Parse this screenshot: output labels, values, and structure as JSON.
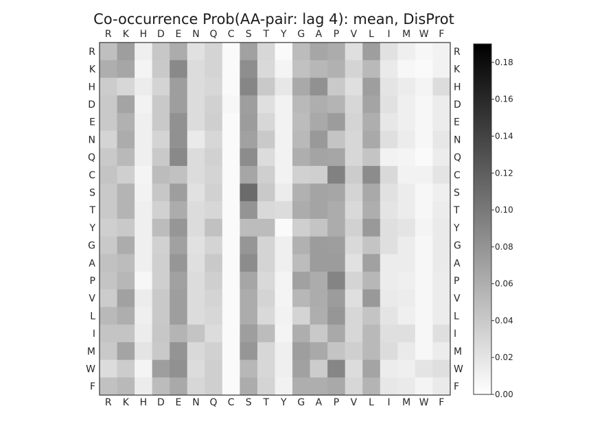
{
  "chart_data": {
    "type": "heatmap",
    "title": "Co-occurrence Prob(AA-pair: lag 4): mean, DisProt",
    "row_labels": [
      "R",
      "K",
      "H",
      "D",
      "E",
      "N",
      "Q",
      "C",
      "S",
      "T",
      "Y",
      "G",
      "A",
      "P",
      "V",
      "L",
      "I",
      "M",
      "W",
      "F"
    ],
    "col_labels": [
      "R",
      "K",
      "H",
      "D",
      "E",
      "N",
      "Q",
      "C",
      "S",
      "T",
      "Y",
      "G",
      "A",
      "P",
      "V",
      "L",
      "I",
      "M",
      "W",
      "F"
    ],
    "values": [
      [
        0.048,
        0.072,
        0.012,
        0.042,
        0.062,
        0.022,
        0.032,
        0.004,
        0.07,
        0.03,
        0.004,
        0.05,
        0.066,
        0.062,
        0.024,
        0.072,
        0.022,
        0.012,
        0.006,
        0.01
      ],
      [
        0.06,
        0.066,
        0.008,
        0.04,
        0.088,
        0.026,
        0.032,
        0.004,
        0.084,
        0.028,
        0.008,
        0.046,
        0.054,
        0.058,
        0.032,
        0.052,
        0.016,
        0.006,
        0.004,
        0.01
      ],
      [
        0.038,
        0.03,
        0.014,
        0.032,
        0.072,
        0.026,
        0.03,
        0.004,
        0.09,
        0.04,
        0.018,
        0.064,
        0.082,
        0.04,
        0.024,
        0.072,
        0.02,
        0.014,
        0.008,
        0.026
      ],
      [
        0.04,
        0.068,
        0.01,
        0.04,
        0.072,
        0.026,
        0.034,
        0.006,
        0.072,
        0.024,
        0.01,
        0.052,
        0.06,
        0.056,
        0.03,
        0.068,
        0.022,
        0.012,
        0.006,
        0.014
      ],
      [
        0.04,
        0.058,
        0.012,
        0.04,
        0.082,
        0.026,
        0.036,
        0.004,
        0.074,
        0.03,
        0.01,
        0.05,
        0.064,
        0.074,
        0.032,
        0.06,
        0.018,
        0.012,
        0.006,
        0.014
      ],
      [
        0.032,
        0.062,
        0.012,
        0.032,
        0.082,
        0.016,
        0.03,
        0.004,
        0.07,
        0.04,
        0.01,
        0.052,
        0.076,
        0.044,
        0.03,
        0.064,
        0.024,
        0.014,
        0.006,
        0.018
      ],
      [
        0.04,
        0.052,
        0.012,
        0.04,
        0.088,
        0.026,
        0.034,
        0.004,
        0.086,
        0.026,
        0.01,
        0.06,
        0.068,
        0.066,
        0.03,
        0.044,
        0.01,
        0.008,
        0.004,
        0.014
      ],
      [
        0.044,
        0.036,
        0.008,
        0.05,
        0.046,
        0.026,
        0.032,
        0.004,
        0.066,
        0.036,
        0.01,
        0.034,
        0.036,
        0.094,
        0.038,
        0.086,
        0.028,
        0.01,
        0.01,
        0.02
      ],
      [
        0.04,
        0.056,
        0.01,
        0.042,
        0.072,
        0.022,
        0.034,
        0.004,
        0.11,
        0.04,
        0.014,
        0.058,
        0.068,
        0.066,
        0.032,
        0.064,
        0.022,
        0.014,
        0.006,
        0.012
      ],
      [
        0.04,
        0.056,
        0.012,
        0.034,
        0.062,
        0.026,
        0.03,
        0.004,
        0.08,
        0.028,
        0.026,
        0.062,
        0.068,
        0.062,
        0.028,
        0.06,
        0.02,
        0.014,
        0.006,
        0.014
      ],
      [
        0.036,
        0.04,
        0.012,
        0.05,
        0.078,
        0.026,
        0.046,
        0.004,
        0.05,
        0.05,
        0.004,
        0.036,
        0.044,
        0.062,
        0.034,
        0.076,
        0.024,
        0.02,
        0.008,
        0.016
      ],
      [
        0.04,
        0.062,
        0.012,
        0.034,
        0.07,
        0.022,
        0.032,
        0.004,
        0.078,
        0.032,
        0.012,
        0.058,
        0.074,
        0.072,
        0.028,
        0.044,
        0.024,
        0.014,
        0.006,
        0.016
      ],
      [
        0.046,
        0.05,
        0.012,
        0.036,
        0.078,
        0.024,
        0.04,
        0.004,
        0.086,
        0.032,
        0.012,
        0.05,
        0.074,
        0.074,
        0.022,
        0.07,
        0.014,
        0.014,
        0.006,
        0.016
      ],
      [
        0.044,
        0.054,
        0.006,
        0.036,
        0.07,
        0.026,
        0.036,
        0.004,
        0.066,
        0.028,
        0.008,
        0.07,
        0.062,
        0.092,
        0.032,
        0.054,
        0.014,
        0.012,
        0.006,
        0.014
      ],
      [
        0.038,
        0.07,
        0.014,
        0.04,
        0.072,
        0.026,
        0.032,
        0.004,
        0.062,
        0.032,
        0.008,
        0.054,
        0.062,
        0.074,
        0.024,
        0.076,
        0.016,
        0.014,
        0.006,
        0.014
      ],
      [
        0.052,
        0.06,
        0.012,
        0.04,
        0.072,
        0.026,
        0.03,
        0.004,
        0.062,
        0.028,
        0.01,
        0.032,
        0.06,
        0.078,
        0.03,
        0.044,
        0.02,
        0.012,
        0.006,
        0.014
      ],
      [
        0.044,
        0.044,
        0.014,
        0.042,
        0.056,
        0.044,
        0.026,
        0.004,
        0.072,
        0.05,
        0.008,
        0.06,
        0.04,
        0.064,
        0.03,
        0.052,
        0.024,
        0.024,
        0.006,
        0.024
      ],
      [
        0.04,
        0.068,
        0.02,
        0.04,
        0.08,
        0.028,
        0.034,
        0.004,
        0.078,
        0.03,
        0.012,
        0.072,
        0.064,
        0.044,
        0.036,
        0.052,
        0.026,
        0.016,
        0.006,
        0.014
      ],
      [
        0.026,
        0.038,
        0.008,
        0.072,
        0.082,
        0.026,
        0.036,
        0.004,
        0.054,
        0.03,
        0.012,
        0.07,
        0.038,
        0.09,
        0.026,
        0.068,
        0.014,
        0.012,
        0.02,
        0.024
      ],
      [
        0.046,
        0.052,
        0.014,
        0.05,
        0.064,
        0.03,
        0.036,
        0.004,
        0.062,
        0.032,
        0.01,
        0.06,
        0.06,
        0.064,
        0.03,
        0.056,
        0.018,
        0.016,
        0.008,
        0.016
      ]
    ],
    "colorbar": {
      "vmin": 0.0,
      "vmax": 0.19,
      "ticks": [
        0.0,
        0.02,
        0.04,
        0.06,
        0.08,
        0.1,
        0.12,
        0.14,
        0.16,
        0.18
      ],
      "tick_labels": [
        "0.00",
        "0.02",
        "0.04",
        "0.06",
        "0.08",
        "0.10",
        "0.12",
        "0.14",
        "0.16",
        "0.18"
      ],
      "colormap": "greys",
      "low_color": "#ffffff",
      "high_color": "#000000"
    },
    "grid": false
  }
}
